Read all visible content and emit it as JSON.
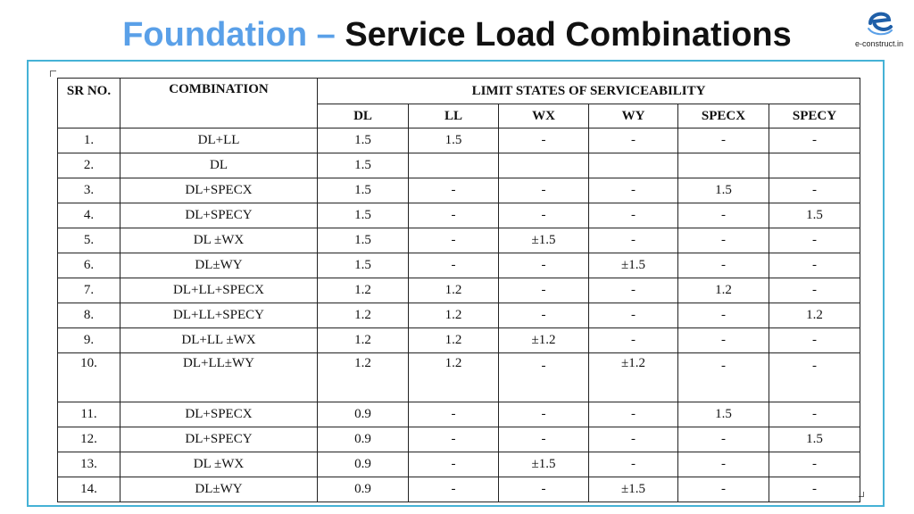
{
  "title": {
    "part1": "Foundation –",
    "part2": "Service Load Combinations"
  },
  "logo": {
    "text": "e-construct.in"
  },
  "table": {
    "header": {
      "sr": "SR NO.",
      "combination": "COMBINATION",
      "group": "LIMIT STATES OF SERVICEABILITY",
      "cols": [
        "DL",
        "LL",
        "WX",
        "WY",
        "SPECX",
        "SPECY"
      ]
    },
    "rows": [
      {
        "sr": "1.",
        "comb": "DL+LL",
        "dl": "1.5",
        "ll": "1.5",
        "wx": "-",
        "wy": "-",
        "specx": "-",
        "specy": "-"
      },
      {
        "sr": "2.",
        "comb": "DL",
        "dl": "1.5",
        "ll": "",
        "wx": "",
        "wy": "",
        "specx": "",
        "specy": ""
      },
      {
        "sr": "3.",
        "comb": "DL+SPECX",
        "dl": "1.5",
        "ll": "-",
        "wx": "-",
        "wy": "-",
        "specx": "1.5",
        "specy": "-"
      },
      {
        "sr": "4.",
        "comb": "DL+SPECY",
        "dl": "1.5",
        "ll": "-",
        "wx": "-",
        "wy": "-",
        "specx": "-",
        "specy": "1.5"
      },
      {
        "sr": "5.",
        "comb": "DL ±WX",
        "dl": "1.5",
        "ll": "-",
        "wx": "±1.5",
        "wy": "-",
        "specx": "-",
        "specy": "-"
      },
      {
        "sr": "6.",
        "comb": "DL±WY",
        "dl": "1.5",
        "ll": "-",
        "wx": "-",
        "wy": "±1.5",
        "specx": "-",
        "specy": "-"
      },
      {
        "sr": "7.",
        "comb": "DL+LL+SPECX",
        "dl": "1.2",
        "ll": "1.2",
        "wx": "-",
        "wy": "-",
        "specx": "1.2",
        "specy": "-"
      },
      {
        "sr": "8.",
        "comb": "DL+LL+SPECY",
        "dl": "1.2",
        "ll": "1.2",
        "wx": "-",
        "wy": "-",
        "specx": "-",
        "specy": "1.2"
      },
      {
        "sr": "9.",
        "comb": "DL+LL ±WX",
        "dl": "1.2",
        "ll": "1.2",
        "wx": "±1.2",
        "wy": "-",
        "specx": "-",
        "specy": "-"
      },
      {
        "sr": "10.",
        "comb": "DL+LL±WY",
        "dl": "1.2",
        "ll": "1.2",
        "wx": "-",
        "wy": "±1.2",
        "specx": "-",
        "specy": "-"
      },
      {
        "sr": "11.",
        "comb": "DL+SPECX",
        "dl": "0.9",
        "ll": "-",
        "wx": "-",
        "wy": "-",
        "specx": "1.5",
        "specy": "-"
      },
      {
        "sr": "12.",
        "comb": "DL+SPECY",
        "dl": "0.9",
        "ll": "-",
        "wx": "-",
        "wy": "-",
        "specx": "-",
        "specy": "1.5"
      },
      {
        "sr": "13.",
        "comb": "DL ±WX",
        "dl": "0.9",
        "ll": "-",
        "wx": "±1.5",
        "wy": "-",
        "specx": "-",
        "specy": "-"
      },
      {
        "sr": "14.",
        "comb": "DL±WY",
        "dl": "0.9",
        "ll": "-",
        "wx": "-",
        "wy": "±1.5",
        "specx": "-",
        "specy": "-"
      }
    ]
  }
}
